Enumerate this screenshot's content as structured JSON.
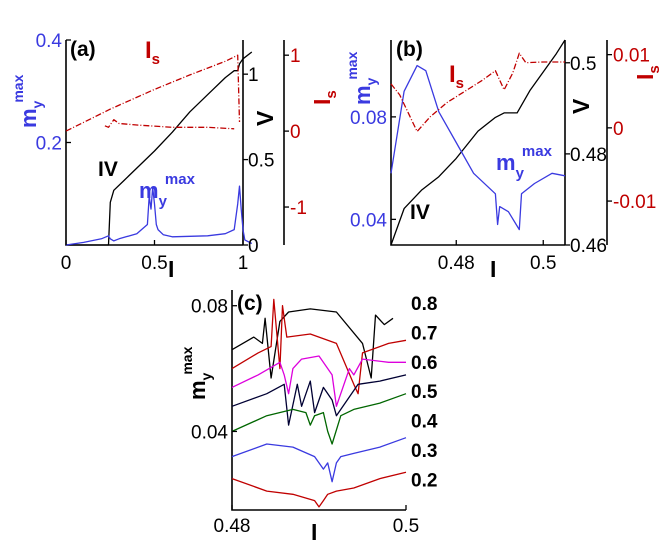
{
  "chart_data": [
    {
      "panel": "a",
      "type": "line",
      "panel_label": "(a)",
      "xlabel": "I",
      "xlim": [
        0,
        1
      ],
      "xticks": [
        "0",
        "0.5",
        "1"
      ],
      "axes": {
        "left": {
          "label_main": "m",
          "label_sub": "y",
          "label_sup": "max",
          "ylim": [
            0,
            0.4
          ],
          "ticks": [
            "0.2",
            "0.4"
          ],
          "color": "#3a3ae0"
        },
        "right1": {
          "label": "V",
          "ylim": [
            0,
            1.2
          ],
          "ticks": [
            "0",
            "0.5",
            "1"
          ],
          "color": "#000000"
        },
        "right2": {
          "label_main": "I",
          "label_sub": "s",
          "ylim": [
            -1.5,
            1.2
          ],
          "ticks": [
            "-1",
            "0",
            "1"
          ],
          "color": "#c00000"
        }
      },
      "annotations": {
        "iv": "IV",
        "is_main": "I",
        "is_sub": "s",
        "m_main": "m",
        "m_sub": "y",
        "m_sup": "max"
      },
      "series": [
        {
          "name": "IV",
          "axis": "right1",
          "color": "#000000",
          "x": [
            0,
            0.24,
            0.25,
            0.27,
            0.33,
            0.5,
            0.6,
            0.7,
            0.8,
            0.9,
            0.95,
            0.97,
            0.98,
            1.0,
            1.05
          ],
          "y": [
            0,
            0,
            0.25,
            0.32,
            0.38,
            0.55,
            0.66,
            0.78,
            0.88,
            0.98,
            1.02,
            1.02,
            1.06,
            1.09,
            1.13
          ]
        },
        {
          "name": "m_y^max",
          "axis": "left",
          "color": "#3a3ae0",
          "x": [
            0,
            0.1,
            0.2,
            0.24,
            0.25,
            0.27,
            0.3,
            0.4,
            0.46,
            0.47,
            0.48,
            0.49,
            0.5,
            0.51,
            0.52,
            0.55,
            0.6,
            0.7,
            0.8,
            0.9,
            0.95,
            0.97,
            0.98,
            0.99,
            1.0,
            1.01,
            1.05
          ],
          "y": [
            0,
            0.005,
            0.012,
            0.018,
            0.012,
            0.008,
            0.012,
            0.022,
            0.04,
            0.095,
            0.07,
            0.112,
            0.08,
            0.04,
            0.03,
            0.02,
            0.016,
            0.017,
            0.018,
            0.022,
            0.03,
            0.08,
            0.115,
            0.07,
            0.03,
            0.01,
            0.003
          ]
        },
        {
          "name": "I_s",
          "axis": "right2",
          "color": "#c00000",
          "dash": true,
          "x": [
            0,
            0.25,
            0.5,
            0.7,
            0.9,
            0.97,
            0.98
          ],
          "y": [
            0,
            0.29,
            0.55,
            0.74,
            0.92,
            1.0,
            0.12
          ]
        },
        {
          "name": "I_s (branch 2)",
          "axis": "right2",
          "color": "#c00000",
          "dash": true,
          "x": [
            0.22,
            0.24,
            0.27,
            0.3,
            0.4,
            0.6,
            0.8,
            0.95
          ],
          "y": [
            0.07,
            0.05,
            0.15,
            0.1,
            0.08,
            0.05,
            0.05,
            0.03
          ]
        }
      ]
    },
    {
      "panel": "b",
      "type": "line",
      "panel_label": "(b)",
      "xlabel": "I",
      "xlim": [
        0.465,
        0.505
      ],
      "xticks": [
        "0.48",
        "0.5"
      ],
      "axes": {
        "left": {
          "label_main": "m",
          "label_sub": "y",
          "label_sup": "max",
          "ylim": [
            0.03,
            0.11
          ],
          "ticks": [
            "0.04",
            "0.08"
          ],
          "color": "#3a3ae0"
        },
        "right1": {
          "label": "V",
          "ylim": [
            0.46,
            0.505
          ],
          "ticks": [
            "0.46",
            "0.48",
            "0.5"
          ],
          "color": "#000000"
        },
        "right2": {
          "label_main": "I",
          "label_sub": "s",
          "ylim": [
            -0.016,
            0.012
          ],
          "ticks": [
            "-0.01",
            "0",
            "0.01"
          ],
          "color": "#c00000"
        }
      },
      "annotations": {
        "iv": "IV",
        "is_main": "I",
        "is_sub": "s",
        "m_main": "m",
        "m_sub": "y",
        "m_sup": "max"
      },
      "series": [
        {
          "name": "IV",
          "axis": "right1",
          "color": "#000000",
          "x": [
            0.465,
            0.468,
            0.472,
            0.476,
            0.48,
            0.485,
            0.489,
            0.491,
            0.494,
            0.497,
            0.5,
            0.503,
            0.505
          ],
          "y": [
            0.46,
            0.468,
            0.472,
            0.475,
            0.479,
            0.485,
            0.488,
            0.489,
            0.489,
            0.494,
            0.498,
            0.502,
            0.505
          ]
        },
        {
          "name": "m_y^max",
          "axis": "left",
          "color": "#3a3ae0",
          "x": [
            0.465,
            0.468,
            0.471,
            0.473,
            0.476,
            0.48,
            0.484,
            0.489,
            0.4895,
            0.49,
            0.492,
            0.4945,
            0.495,
            0.498,
            0.502,
            0.505
          ],
          "y": [
            0.058,
            0.09,
            0.1,
            0.098,
            0.082,
            0.07,
            0.058,
            0.05,
            0.038,
            0.045,
            0.043,
            0.036,
            0.05,
            0.054,
            0.058,
            0.057
          ]
        },
        {
          "name": "I_s",
          "axis": "right2",
          "color": "#c00000",
          "dash": true,
          "x": [
            0.465,
            0.467,
            0.469,
            0.471,
            0.474,
            0.478,
            0.482,
            0.486,
            0.489,
            0.491,
            0.493,
            0.4945,
            0.496,
            0.5,
            0.505
          ],
          "y": [
            0.006,
            0.0045,
            0.002,
            -0.0005,
            0.0015,
            0.0035,
            0.005,
            0.0065,
            0.0078,
            0.0052,
            0.0075,
            0.0102,
            0.0089,
            0.009,
            0.009
          ]
        }
      ]
    },
    {
      "panel": "c",
      "type": "line",
      "panel_label": "(c)",
      "xlabel": "I",
      "xlim": [
        0.48,
        0.5
      ],
      "xticks": [
        "0.48",
        "0.5"
      ],
      "ylabel_main": "m",
      "ylabel_sub": "y",
      "ylabel_sup": "max",
      "ylim": [
        0.015,
        0.085
      ],
      "yticks": [
        "0.04",
        "0.08"
      ],
      "series": [
        {
          "name": "0.8",
          "color": "#000000",
          "x": [
            0.48,
            0.4825,
            0.4835,
            0.4838,
            0.4845,
            0.4855,
            0.4865,
            0.489,
            0.492,
            0.495,
            0.496,
            0.4965,
            0.4975,
            0.4985
          ],
          "y": [
            0.066,
            0.07,
            0.068,
            0.076,
            0.057,
            0.075,
            0.078,
            0.079,
            0.078,
            0.068,
            0.057,
            0.077,
            0.074,
            0.076
          ]
        },
        {
          "name": "0.7",
          "color": "#c00000",
          "x": [
            0.48,
            0.483,
            0.4845,
            0.4848,
            0.4855,
            0.4858,
            0.4863,
            0.489,
            0.492,
            0.494,
            0.4945,
            0.495,
            0.498,
            0.5
          ],
          "y": [
            0.06,
            0.065,
            0.067,
            0.082,
            0.06,
            0.08,
            0.07,
            0.071,
            0.068,
            0.055,
            0.052,
            0.065,
            0.068,
            0.069
          ]
        },
        {
          "name": "0.6",
          "color": "#dd00dd",
          "x": [
            0.48,
            0.483,
            0.4855,
            0.486,
            0.4865,
            0.487,
            0.488,
            0.49,
            0.4915,
            0.492,
            0.4935,
            0.494,
            0.495,
            0.498,
            0.5
          ],
          "y": [
            0.054,
            0.058,
            0.062,
            0.058,
            0.052,
            0.06,
            0.063,
            0.064,
            0.058,
            0.048,
            0.06,
            0.058,
            0.063,
            0.062,
            0.062
          ]
        },
        {
          "name": "0.5",
          "color": "#000033",
          "x": [
            0.48,
            0.484,
            0.486,
            0.4865,
            0.4875,
            0.488,
            0.489,
            0.4895,
            0.4905,
            0.4915,
            0.492,
            0.4945,
            0.497,
            0.5
          ],
          "y": [
            0.048,
            0.052,
            0.055,
            0.042,
            0.055,
            0.048,
            0.056,
            0.046,
            0.054,
            0.05,
            0.045,
            0.055,
            0.056,
            0.058
          ]
        },
        {
          "name": "0.4",
          "color": "#006600",
          "x": [
            0.48,
            0.484,
            0.487,
            0.4885,
            0.489,
            0.4895,
            0.4905,
            0.491,
            0.4915,
            0.4925,
            0.494,
            0.497,
            0.5
          ],
          "y": [
            0.04,
            0.045,
            0.047,
            0.046,
            0.042,
            0.045,
            0.046,
            0.04,
            0.036,
            0.045,
            0.047,
            0.049,
            0.052
          ]
        },
        {
          "name": "0.3",
          "color": "#3a3ae0",
          "x": [
            0.48,
            0.484,
            0.487,
            0.4895,
            0.4905,
            0.491,
            0.4915,
            0.492,
            0.4925,
            0.494,
            0.497,
            0.5
          ],
          "y": [
            0.032,
            0.036,
            0.035,
            0.032,
            0.028,
            0.03,
            0.024,
            0.03,
            0.032,
            0.033,
            0.035,
            0.038
          ]
        },
        {
          "name": "0.2",
          "color": "#c00000",
          "x": [
            0.48,
            0.484,
            0.487,
            0.4895,
            0.49,
            0.4905,
            0.491,
            0.492,
            0.494,
            0.497,
            0.5
          ],
          "y": [
            0.025,
            0.021,
            0.02,
            0.018,
            0.016,
            0.018,
            0.02,
            0.021,
            0.022,
            0.025,
            0.027
          ]
        }
      ]
    }
  ]
}
